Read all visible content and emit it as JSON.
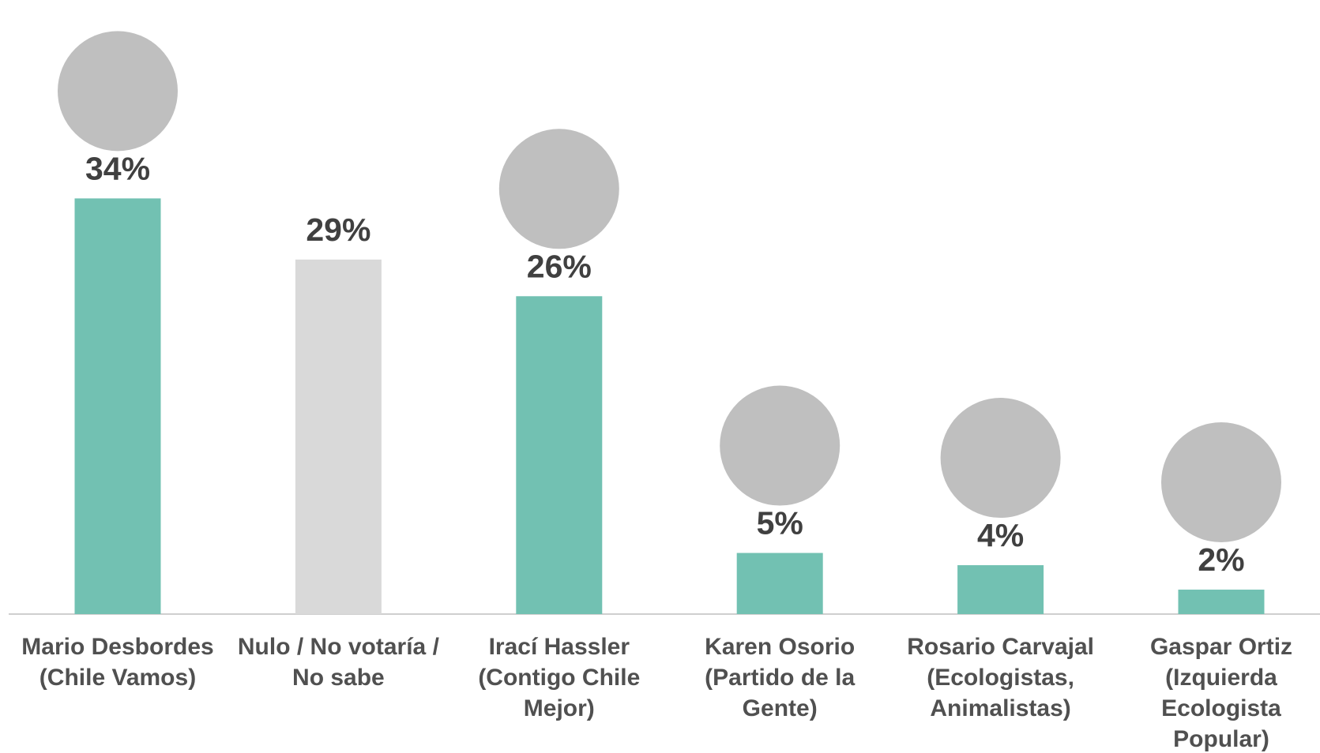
{
  "chart_data": {
    "type": "bar",
    "categories": [
      "Mario Desbordes (Chile Vamos)",
      "Nulo / No votaría / No sabe",
      "Irací Hassler (Contigo Chile Mejor)",
      "Karen Osorio (Partido de la Gente)",
      "Rosario Carvajal (Ecologistas, Animalistas)",
      "Gaspar Ortiz (Izquierda Ecologista Popular)"
    ],
    "values": [
      34,
      29,
      26,
      5,
      4,
      2
    ],
    "value_labels": [
      "34%",
      "29%",
      "26%",
      "5%",
      "4%",
      "2%"
    ],
    "colors": [
      "#72c1b2",
      "#d9d9d9",
      "#72c1b2",
      "#72c1b2",
      "#72c1b2",
      "#72c1b2"
    ]
  }
}
